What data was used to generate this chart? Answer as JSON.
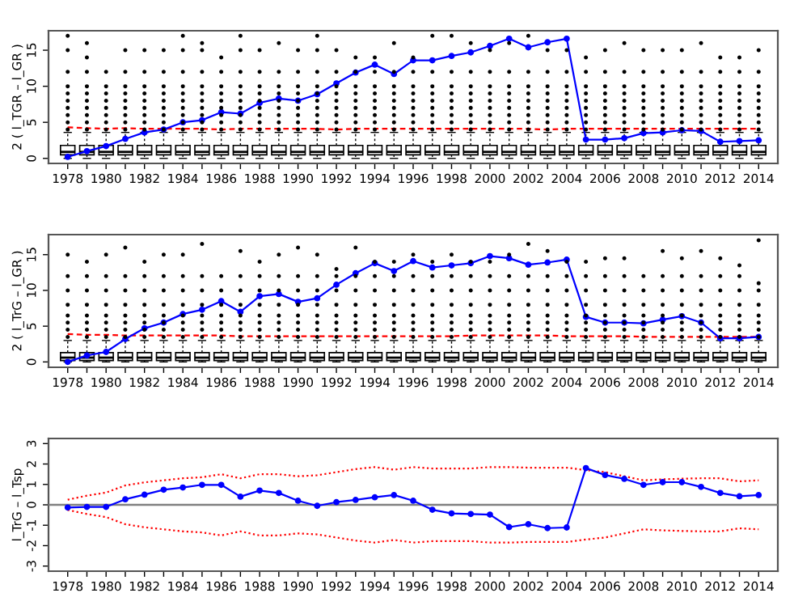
{
  "chart_data": [
    {
      "type": "box",
      "ylabel": "2 ( l_TGR – l_GR )",
      "categories": [
        "1978",
        null,
        "1980",
        null,
        "1982",
        null,
        "1984",
        null,
        "1986",
        null,
        "1988",
        null,
        "1990",
        null,
        "1992",
        null,
        "1994",
        null,
        "1996",
        null,
        "1998",
        null,
        "2000",
        null,
        "2002",
        null,
        "2004",
        null,
        "2006",
        null,
        "2008",
        null,
        "2010",
        null,
        "2012",
        null,
        "2014"
      ],
      "boxes": [
        {
          "low": 0,
          "q1": 0.5,
          "median": 0.9,
          "q3": 1.8,
          "high": 3.6,
          "outliers": [
            4,
            5,
            6,
            7,
            8,
            9,
            10,
            12,
            15,
            17
          ]
        },
        {
          "low": 0,
          "q1": 0.5,
          "median": 0.9,
          "q3": 1.8,
          "high": 3.6,
          "outliers": [
            4,
            5,
            6,
            7,
            8,
            9,
            10,
            12,
            14,
            16
          ]
        },
        {
          "low": 0,
          "q1": 0.5,
          "median": 0.9,
          "q3": 1.8,
          "high": 3.6,
          "outliers": [
            4,
            5,
            6,
            7,
            8,
            9,
            10,
            12
          ]
        },
        {
          "low": 0,
          "q1": 0.5,
          "median": 0.9,
          "q3": 1.8,
          "high": 3.6,
          "outliers": [
            4,
            5,
            6,
            7,
            8,
            9,
            10,
            12,
            15
          ]
        },
        {
          "low": 0,
          "q1": 0.5,
          "median": 0.9,
          "q3": 1.8,
          "high": 3.6,
          "outliers": [
            4,
            5,
            6,
            7,
            8,
            9,
            10,
            12,
            15
          ]
        },
        {
          "low": 0,
          "q1": 0.5,
          "median": 0.9,
          "q3": 1.8,
          "high": 3.6,
          "outliers": [
            4,
            5,
            6,
            7,
            8,
            9,
            10,
            12,
            15
          ]
        },
        {
          "low": 0,
          "q1": 0.5,
          "median": 0.9,
          "q3": 1.8,
          "high": 3.6,
          "outliers": [
            4,
            5,
            6,
            7,
            8,
            9,
            10,
            12,
            15,
            17
          ]
        },
        {
          "low": 0,
          "q1": 0.5,
          "median": 0.9,
          "q3": 1.8,
          "high": 3.6,
          "outliers": [
            4,
            5,
            6,
            7,
            8,
            9,
            10,
            12,
            15,
            16
          ]
        },
        {
          "low": 0,
          "q1": 0.5,
          "median": 0.9,
          "q3": 1.8,
          "high": 3.6,
          "outliers": [
            4,
            5,
            6,
            7,
            8,
            9,
            10,
            12,
            14
          ]
        },
        {
          "low": 0,
          "q1": 0.5,
          "median": 0.9,
          "q3": 1.8,
          "high": 3.6,
          "outliers": [
            4,
            5,
            6,
            7,
            8,
            9,
            10,
            12,
            15,
            17
          ]
        },
        {
          "low": 0,
          "q1": 0.5,
          "median": 0.9,
          "q3": 1.8,
          "high": 3.6,
          "outliers": [
            4,
            5,
            6,
            7,
            8,
            9,
            10,
            12,
            15
          ]
        },
        {
          "low": 0,
          "q1": 0.5,
          "median": 0.9,
          "q3": 1.8,
          "high": 3.6,
          "outliers": [
            4,
            5,
            6,
            7,
            8,
            9,
            10,
            12,
            16
          ]
        },
        {
          "low": 0,
          "q1": 0.5,
          "median": 0.9,
          "q3": 1.8,
          "high": 3.6,
          "outliers": [
            4,
            5,
            6,
            7,
            8,
            9,
            10,
            12,
            15
          ]
        },
        {
          "low": 0,
          "q1": 0.5,
          "median": 0.9,
          "q3": 1.8,
          "high": 3.6,
          "outliers": [
            4,
            5,
            6,
            7,
            8,
            9,
            10,
            12,
            15,
            17
          ]
        },
        {
          "low": 0,
          "q1": 0.5,
          "median": 0.9,
          "q3": 1.8,
          "high": 3.6,
          "outliers": [
            4,
            5,
            6,
            7,
            8,
            9,
            10,
            12,
            15
          ]
        },
        {
          "low": 0,
          "q1": 0.5,
          "median": 0.9,
          "q3": 1.8,
          "high": 3.6,
          "outliers": [
            4,
            5,
            6,
            7,
            8,
            9,
            10,
            12,
            14
          ]
        },
        {
          "low": 0,
          "q1": 0.5,
          "median": 0.9,
          "q3": 1.8,
          "high": 3.6,
          "outliers": [
            4,
            5,
            6,
            7,
            8,
            9,
            10,
            12,
            14
          ]
        },
        {
          "low": 0,
          "q1": 0.5,
          "median": 0.9,
          "q3": 1.8,
          "high": 3.6,
          "outliers": [
            4,
            5,
            6,
            7,
            8,
            9,
            10,
            12,
            16
          ]
        },
        {
          "low": 0,
          "q1": 0.5,
          "median": 0.9,
          "q3": 1.8,
          "high": 3.6,
          "outliers": [
            4,
            5,
            6,
            7,
            8,
            9,
            10,
            12,
            14
          ]
        },
        {
          "low": 0,
          "q1": 0.5,
          "median": 0.9,
          "q3": 1.8,
          "high": 3.6,
          "outliers": [
            4,
            5,
            6,
            7,
            8,
            9,
            10,
            12,
            17
          ]
        },
        {
          "low": 0,
          "q1": 0.5,
          "median": 0.9,
          "q3": 1.8,
          "high": 3.6,
          "outliers": [
            4,
            5,
            6,
            7,
            8,
            9,
            10,
            12,
            17
          ]
        },
        {
          "low": 0,
          "q1": 0.5,
          "median": 0.9,
          "q3": 1.8,
          "high": 3.6,
          "outliers": [
            4,
            5,
            6,
            7,
            8,
            9,
            10,
            12,
            16
          ]
        },
        {
          "low": 0,
          "q1": 0.5,
          "median": 0.9,
          "q3": 1.8,
          "high": 3.6,
          "outliers": [
            4,
            5,
            6,
            7,
            8,
            9,
            10,
            12,
            15
          ]
        },
        {
          "low": 0,
          "q1": 0.5,
          "median": 0.9,
          "q3": 1.8,
          "high": 3.6,
          "outliers": [
            4,
            5,
            6,
            7,
            8,
            9,
            10,
            12,
            16
          ]
        },
        {
          "low": 0,
          "q1": 0.5,
          "median": 0.9,
          "q3": 1.8,
          "high": 3.6,
          "outliers": [
            4,
            5,
            6,
            7,
            8,
            9,
            10,
            12,
            17
          ]
        },
        {
          "low": 0,
          "q1": 0.5,
          "median": 0.9,
          "q3": 1.8,
          "high": 3.6,
          "outliers": [
            4,
            5,
            6,
            7,
            8,
            9,
            10,
            12,
            15
          ]
        },
        {
          "low": 0,
          "q1": 0.5,
          "median": 0.9,
          "q3": 1.8,
          "high": 3.6,
          "outliers": [
            4,
            5,
            6,
            7,
            8,
            9,
            10,
            12,
            15
          ]
        },
        {
          "low": 0,
          "q1": 0.5,
          "median": 0.9,
          "q3": 1.8,
          "high": 3.6,
          "outliers": [
            4,
            5,
            6,
            7,
            8,
            9,
            10,
            12,
            14
          ]
        },
        {
          "low": 0,
          "q1": 0.5,
          "median": 0.9,
          "q3": 1.8,
          "high": 3.6,
          "outliers": [
            4,
            5,
            6,
            7,
            8,
            9,
            10,
            12,
            15
          ]
        },
        {
          "low": 0,
          "q1": 0.5,
          "median": 0.9,
          "q3": 1.8,
          "high": 3.6,
          "outliers": [
            4,
            5,
            6,
            7,
            8,
            9,
            10,
            12,
            16
          ]
        },
        {
          "low": 0,
          "q1": 0.5,
          "median": 0.9,
          "q3": 1.8,
          "high": 3.6,
          "outliers": [
            4,
            5,
            6,
            7,
            8,
            9,
            10,
            12,
            15
          ]
        },
        {
          "low": 0,
          "q1": 0.5,
          "median": 0.9,
          "q3": 1.8,
          "high": 3.6,
          "outliers": [
            4,
            5,
            6,
            7,
            8,
            9,
            10,
            12,
            15
          ]
        },
        {
          "low": 0,
          "q1": 0.5,
          "median": 0.9,
          "q3": 1.8,
          "high": 3.6,
          "outliers": [
            4,
            5,
            6,
            7,
            8,
            9,
            10,
            12,
            15
          ]
        },
        {
          "low": 0,
          "q1": 0.5,
          "median": 0.9,
          "q3": 1.8,
          "high": 3.6,
          "outliers": [
            4,
            5,
            6,
            7,
            8,
            9,
            10,
            12,
            16
          ]
        },
        {
          "low": 0,
          "q1": 0.5,
          "median": 0.9,
          "q3": 1.8,
          "high": 3.6,
          "outliers": [
            4,
            5,
            6,
            7,
            8,
            9,
            10,
            12,
            14
          ]
        },
        {
          "low": 0,
          "q1": 0.5,
          "median": 0.9,
          "q3": 1.8,
          "high": 3.6,
          "outliers": [
            4,
            5,
            6,
            7,
            8,
            9,
            10,
            12,
            14
          ]
        },
        {
          "low": 0,
          "q1": 0.5,
          "median": 0.9,
          "q3": 1.8,
          "high": 3.6,
          "outliers": [
            4,
            5,
            6,
            7,
            8,
            9,
            10,
            12,
            15
          ]
        }
      ],
      "series": [
        {
          "type": "line",
          "color": "#ff0000",
          "line_style": "dashed",
          "marker": "none",
          "values": [
            4.3,
            4.2,
            4.1,
            4.2,
            4.1,
            4.1,
            4.1,
            4.1,
            4.0,
            4.1,
            4.1,
            4.1,
            4.1,
            4.1,
            4.0,
            4.1,
            4.1,
            4.1,
            4.1,
            4.1,
            4.1,
            4.1,
            4.1,
            4.1,
            4.1,
            4.0,
            4.1,
            4.1,
            4.1,
            4.1,
            4.1,
            4.1,
            4.1,
            4.1,
            4.1,
            4.1,
            4.1
          ]
        },
        {
          "type": "line",
          "color": "#0000ff",
          "line_style": "solid",
          "marker": "circle",
          "values": [
            0.2,
            1.0,
            1.7,
            2.7,
            3.6,
            4.0,
            5.0,
            5.3,
            6.4,
            6.2,
            7.7,
            8.3,
            8.0,
            8.9,
            10.4,
            11.9,
            13.0,
            11.7,
            13.6,
            13.6,
            14.2,
            14.7,
            15.6,
            16.6,
            15.4,
            16.1,
            16.6,
            2.6,
            2.6,
            2.8,
            3.5,
            3.6,
            3.9,
            3.8,
            2.3,
            2.4,
            2.5
          ]
        }
      ],
      "ylim": [
        -0.7,
        17.7
      ],
      "yticks": [
        0,
        5,
        10,
        15
      ],
      "grid": false,
      "legend": false
    },
    {
      "type": "box",
      "ylabel": "2 ( l_TrG – l_GR )",
      "categories": [
        "1978",
        null,
        "1980",
        null,
        "1982",
        null,
        "1984",
        null,
        "1986",
        null,
        "1988",
        null,
        "1990",
        null,
        "1992",
        null,
        "1994",
        null,
        "1996",
        null,
        "1998",
        null,
        "2000",
        null,
        "2002",
        null,
        "2004",
        null,
        "2006",
        null,
        "2008",
        null,
        "2010",
        null,
        "2012",
        null,
        "2014"
      ],
      "boxes": [
        {
          "low": 0,
          "q1": 0.2,
          "median": 0.6,
          "q3": 1.3,
          "high": 3.0,
          "outliers": [
            3.5,
            4.5,
            5.5,
            6.5,
            8,
            10,
            12,
            15
          ]
        },
        {
          "low": 0,
          "q1": 0.2,
          "median": 0.6,
          "q3": 1.3,
          "high": 3.0,
          "outliers": [
            3.5,
            4.5,
            5.5,
            6.5,
            8,
            10,
            12,
            14
          ]
        },
        {
          "low": 0,
          "q1": 0.2,
          "median": 0.6,
          "q3": 1.3,
          "high": 3.0,
          "outliers": [
            3.5,
            4.5,
            5.5,
            6.5,
            8,
            10,
            12,
            15
          ]
        },
        {
          "low": 0,
          "q1": 0.2,
          "median": 0.6,
          "q3": 1.3,
          "high": 3.0,
          "outliers": [
            3.5,
            4.5,
            5.5,
            6.5,
            8,
            10,
            12,
            16
          ]
        },
        {
          "low": 0,
          "q1": 0.2,
          "median": 0.6,
          "q3": 1.3,
          "high": 3.0,
          "outliers": [
            3.5,
            4.5,
            5.5,
            6.5,
            8,
            10,
            12,
            14
          ]
        },
        {
          "low": 0,
          "q1": 0.2,
          "median": 0.6,
          "q3": 1.3,
          "high": 3.0,
          "outliers": [
            3.5,
            4.5,
            5.5,
            6.5,
            8,
            10,
            12,
            15
          ]
        },
        {
          "low": 0,
          "q1": 0.2,
          "median": 0.6,
          "q3": 1.3,
          "high": 3.0,
          "outliers": [
            3.5,
            4.5,
            5.5,
            6.5,
            8,
            10,
            12,
            15
          ]
        },
        {
          "low": 0,
          "q1": 0.2,
          "median": 0.6,
          "q3": 1.3,
          "high": 3.0,
          "outliers": [
            3.5,
            4.5,
            5.5,
            6.5,
            8,
            10,
            12,
            16.5
          ]
        },
        {
          "low": 0,
          "q1": 0.2,
          "median": 0.6,
          "q3": 1.3,
          "high": 3.0,
          "outliers": [
            3.5,
            4.5,
            5.5,
            6.5,
            8,
            10,
            12
          ]
        },
        {
          "low": 0,
          "q1": 0.2,
          "median": 0.6,
          "q3": 1.3,
          "high": 3.0,
          "outliers": [
            3.5,
            4.5,
            5.5,
            6.5,
            8,
            10,
            12,
            15.5
          ]
        },
        {
          "low": 0,
          "q1": 0.2,
          "median": 0.6,
          "q3": 1.3,
          "high": 3.0,
          "outliers": [
            3.5,
            4.5,
            5.5,
            6.5,
            8,
            10,
            12,
            14
          ]
        },
        {
          "low": 0,
          "q1": 0.2,
          "median": 0.6,
          "q3": 1.3,
          "high": 3.0,
          "outliers": [
            3.5,
            4.5,
            5.5,
            6.5,
            8,
            10,
            12,
            15
          ]
        },
        {
          "low": 0,
          "q1": 0.2,
          "median": 0.6,
          "q3": 1.3,
          "high": 3.0,
          "outliers": [
            3.5,
            4.5,
            5.5,
            6.5,
            8,
            10,
            12,
            16
          ]
        },
        {
          "low": 0,
          "q1": 0.2,
          "median": 0.6,
          "q3": 1.3,
          "high": 3.0,
          "outliers": [
            3.5,
            4.5,
            5.5,
            6.5,
            8,
            10,
            12,
            15
          ]
        },
        {
          "low": 0,
          "q1": 0.2,
          "median": 0.6,
          "q3": 1.3,
          "high": 3.0,
          "outliers": [
            3.5,
            4.5,
            5.5,
            6.5,
            8,
            10,
            12,
            13
          ]
        },
        {
          "low": 0,
          "q1": 0.2,
          "median": 0.6,
          "q3": 1.3,
          "high": 3.0,
          "outliers": [
            3.5,
            4.5,
            5.5,
            6.5,
            8,
            10,
            12,
            16
          ]
        },
        {
          "low": 0,
          "q1": 0.2,
          "median": 0.6,
          "q3": 1.3,
          "high": 3.0,
          "outliers": [
            3.5,
            4.5,
            5.5,
            6.5,
            8,
            10,
            12,
            14
          ]
        },
        {
          "low": 0,
          "q1": 0.2,
          "median": 0.6,
          "q3": 1.3,
          "high": 3.0,
          "outliers": [
            3.5,
            4.5,
            5.5,
            6.5,
            8,
            10,
            12,
            14
          ]
        },
        {
          "low": 0,
          "q1": 0.2,
          "median": 0.6,
          "q3": 1.3,
          "high": 3.0,
          "outliers": [
            3.5,
            4.5,
            5.5,
            6.5,
            8,
            10,
            12,
            15
          ]
        },
        {
          "low": 0,
          "q1": 0.2,
          "median": 0.6,
          "q3": 1.3,
          "high": 3.0,
          "outliers": [
            3.5,
            4.5,
            5.5,
            6.5,
            8,
            10,
            12,
            14
          ]
        },
        {
          "low": 0,
          "q1": 0.2,
          "median": 0.6,
          "q3": 1.3,
          "high": 3.0,
          "outliers": [
            3.5,
            4.5,
            5.5,
            6.5,
            8,
            10,
            12,
            15
          ]
        },
        {
          "low": 0,
          "q1": 0.2,
          "median": 0.6,
          "q3": 1.3,
          "high": 3.0,
          "outliers": [
            3.5,
            4.5,
            5.5,
            6.5,
            8,
            10,
            12,
            14
          ]
        },
        {
          "low": 0,
          "q1": 0.2,
          "median": 0.6,
          "q3": 1.3,
          "high": 3.0,
          "outliers": [
            3.5,
            4.5,
            5.5,
            6.5,
            8,
            10,
            12,
            14
          ]
        },
        {
          "low": 0,
          "q1": 0.2,
          "median": 0.6,
          "q3": 1.3,
          "high": 3.0,
          "outliers": [
            3.5,
            4.5,
            5.5,
            6.5,
            8,
            10,
            12,
            15
          ]
        },
        {
          "low": 0,
          "q1": 0.2,
          "median": 0.6,
          "q3": 1.3,
          "high": 3.0,
          "outliers": [
            3.5,
            4.5,
            5.5,
            6.5,
            8,
            10,
            12,
            16.5
          ]
        },
        {
          "low": 0,
          "q1": 0.2,
          "median": 0.6,
          "q3": 1.3,
          "high": 3.0,
          "outliers": [
            3.5,
            4.5,
            5.5,
            6.5,
            8,
            10,
            12,
            15.5
          ]
        },
        {
          "low": 0,
          "q1": 0.2,
          "median": 0.6,
          "q3": 1.3,
          "high": 3.0,
          "outliers": [
            3.5,
            4.5,
            5.5,
            6.5,
            8,
            10,
            12,
            14
          ]
        },
        {
          "low": 0,
          "q1": 0.2,
          "median": 0.6,
          "q3": 1.3,
          "high": 3.0,
          "outliers": [
            3.5,
            4.5,
            5.5,
            6.5,
            8,
            10,
            12,
            14
          ]
        },
        {
          "low": 0,
          "q1": 0.2,
          "median": 0.6,
          "q3": 1.3,
          "high": 3.0,
          "outliers": [
            3.5,
            4.5,
            5.5,
            6.5,
            8,
            10,
            12,
            14.5
          ]
        },
        {
          "low": 0,
          "q1": 0.2,
          "median": 0.6,
          "q3": 1.3,
          "high": 3.0,
          "outliers": [
            3.5,
            4.5,
            5.5,
            6.5,
            8,
            10,
            12,
            14.5
          ]
        },
        {
          "low": 0,
          "q1": 0.2,
          "median": 0.6,
          "q3": 1.3,
          "high": 3.0,
          "outliers": [
            3.5,
            4.5,
            5.5,
            6.5,
            8,
            10,
            12
          ]
        },
        {
          "low": 0,
          "q1": 0.2,
          "median": 0.6,
          "q3": 1.3,
          "high": 3.0,
          "outliers": [
            3.5,
            4.5,
            5.5,
            6.5,
            8,
            10,
            12,
            15.5
          ]
        },
        {
          "low": 0,
          "q1": 0.2,
          "median": 0.6,
          "q3": 1.3,
          "high": 3.0,
          "outliers": [
            3.5,
            4.5,
            5.5,
            6.5,
            8,
            10,
            12,
            14.5
          ]
        },
        {
          "low": 0,
          "q1": 0.2,
          "median": 0.6,
          "q3": 1.3,
          "high": 3.0,
          "outliers": [
            3.5,
            4.5,
            5.5,
            6.5,
            8,
            10,
            12,
            15.5
          ]
        },
        {
          "low": 0,
          "q1": 0.2,
          "median": 0.6,
          "q3": 1.3,
          "high": 3.0,
          "outliers": [
            3.5,
            4.5,
            5.5,
            6.5,
            8,
            10,
            12,
            14.5
          ]
        },
        {
          "low": 0,
          "q1": 0.2,
          "median": 0.6,
          "q3": 1.3,
          "high": 3.0,
          "outliers": [
            3.5,
            4.5,
            5.5,
            6.5,
            8,
            10,
            12,
            13.5
          ]
        },
        {
          "low": 0,
          "q1": 0.2,
          "median": 0.6,
          "q3": 1.3,
          "high": 3.0,
          "outliers": [
            3.5,
            4.5,
            5.5,
            6.5,
            8,
            10,
            11,
            17
          ]
        }
      ],
      "series": [
        {
          "type": "line",
          "color": "#ff0000",
          "line_style": "dashed",
          "marker": "none",
          "values": [
            3.9,
            3.8,
            3.8,
            3.7,
            3.7,
            3.7,
            3.7,
            3.7,
            3.7,
            3.6,
            3.6,
            3.6,
            3.6,
            3.6,
            3.6,
            3.6,
            3.6,
            3.6,
            3.6,
            3.6,
            3.6,
            3.7,
            3.7,
            3.7,
            3.7,
            3.7,
            3.6,
            3.6,
            3.6,
            3.6,
            3.5,
            3.5,
            3.5,
            3.5,
            3.5,
            3.5,
            3.5
          ]
        },
        {
          "type": "line",
          "color": "#0000ff",
          "line_style": "solid",
          "marker": "circle",
          "values": [
            0.0,
            0.9,
            1.4,
            3.2,
            4.7,
            5.5,
            6.7,
            7.3,
            8.5,
            7.0,
            9.2,
            9.5,
            8.4,
            8.9,
            10.8,
            12.4,
            13.8,
            12.7,
            14.1,
            13.2,
            13.5,
            13.8,
            14.8,
            14.5,
            13.6,
            13.9,
            14.3,
            6.3,
            5.5,
            5.5,
            5.4,
            5.9,
            6.4,
            5.5,
            3.3,
            3.3,
            3.5
          ]
        }
      ],
      "ylim": [
        -0.75,
        17.8
      ],
      "yticks": [
        0,
        5,
        10,
        15
      ],
      "grid": false,
      "legend": false
    },
    {
      "type": "line",
      "ylabel": "l_TrG – l_Tsp",
      "categories": [
        "1978",
        null,
        "1980",
        null,
        "1982",
        null,
        "1984",
        null,
        "1986",
        null,
        "1988",
        null,
        "1990",
        null,
        "1992",
        null,
        "1994",
        null,
        "1996",
        null,
        "1998",
        null,
        "2000",
        null,
        "2002",
        null,
        "2004",
        null,
        "2006",
        null,
        "2008",
        null,
        "2010",
        null,
        "2012",
        null,
        "2014"
      ],
      "series": [
        {
          "color": "#ff0000",
          "line_style": "dotted",
          "marker": "none",
          "values": [
            0.25,
            0.45,
            0.6,
            0.95,
            1.1,
            1.2,
            1.3,
            1.35,
            1.5,
            1.3,
            1.5,
            1.5,
            1.4,
            1.45,
            1.6,
            1.75,
            1.85,
            1.72,
            1.85,
            1.78,
            1.78,
            1.78,
            1.85,
            1.85,
            1.82,
            1.82,
            1.82,
            1.7,
            1.6,
            1.4,
            1.2,
            1.25,
            1.28,
            1.3,
            1.3,
            1.15,
            1.2
          ]
        },
        {
          "color": "#ff0000",
          "line_style": "dotted",
          "marker": "none",
          "values": [
            -0.25,
            -0.45,
            -0.6,
            -0.95,
            -1.1,
            -1.2,
            -1.3,
            -1.35,
            -1.5,
            -1.3,
            -1.5,
            -1.5,
            -1.4,
            -1.45,
            -1.6,
            -1.75,
            -1.85,
            -1.72,
            -1.85,
            -1.78,
            -1.78,
            -1.78,
            -1.85,
            -1.85,
            -1.82,
            -1.82,
            -1.82,
            -1.7,
            -1.6,
            -1.4,
            -1.2,
            -1.25,
            -1.28,
            -1.3,
            -1.3,
            -1.15,
            -1.2
          ]
        },
        {
          "color": "#0000ff",
          "line_style": "solid",
          "marker": "circle",
          "values": [
            -0.13,
            -0.1,
            -0.1,
            0.27,
            0.5,
            0.74,
            0.85,
            0.98,
            0.98,
            0.4,
            0.7,
            0.58,
            0.2,
            -0.05,
            0.13,
            0.24,
            0.37,
            0.48,
            0.2,
            -0.24,
            -0.42,
            -0.45,
            -0.48,
            -1.09,
            -0.95,
            -1.14,
            -1.11,
            1.8,
            1.46,
            1.27,
            0.98,
            1.11,
            1.11,
            0.88,
            0.58,
            0.42,
            0.48
          ]
        }
      ],
      "ref_lines": [
        {
          "axis": "y",
          "value": 0,
          "color": "#808080",
          "line_style": "solid"
        }
      ],
      "ylim": [
        -3.25,
        3.25
      ],
      "yticks": [
        -3,
        -2,
        -1,
        0,
        1,
        2,
        3
      ],
      "grid": false,
      "legend": false
    }
  ]
}
